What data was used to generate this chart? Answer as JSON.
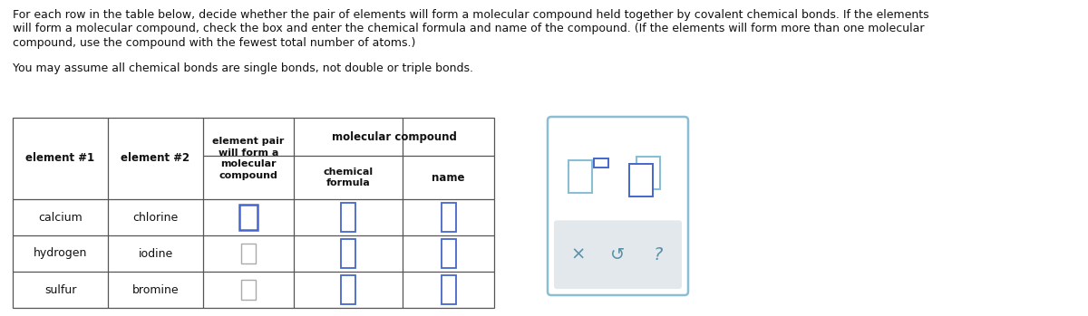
{
  "title_line1": "For each row in the table below, decide whether the pair of elements will form a molecular compound held together by covalent chemical bonds. If the elements",
  "title_line2": "will form a molecular compound, check the box and enter the chemical formula and name of the compound. (If the elements will form more than one molecular",
  "title_line3": "compound, use the compound with the fewest total number of atoms.)",
  "subtitle_text": "You may assume all chemical bonds are single bonds, not double or triple bonds.",
  "rows": [
    [
      "calcium",
      "chlorine"
    ],
    [
      "hydrogen",
      "iodine"
    ],
    [
      "sulfur",
      "bromine"
    ]
  ],
  "bg_color": "#ffffff",
  "border_color": "#555555",
  "checkbox_blue": "#4466cc",
  "checkbox_gray": "#aaaaaa",
  "widget_border": "#8bbdd4",
  "widget_bg": "#ffffff",
  "widget_gray_bg": "#e2e8ec",
  "widget_icon_color": "#5a8fa8"
}
